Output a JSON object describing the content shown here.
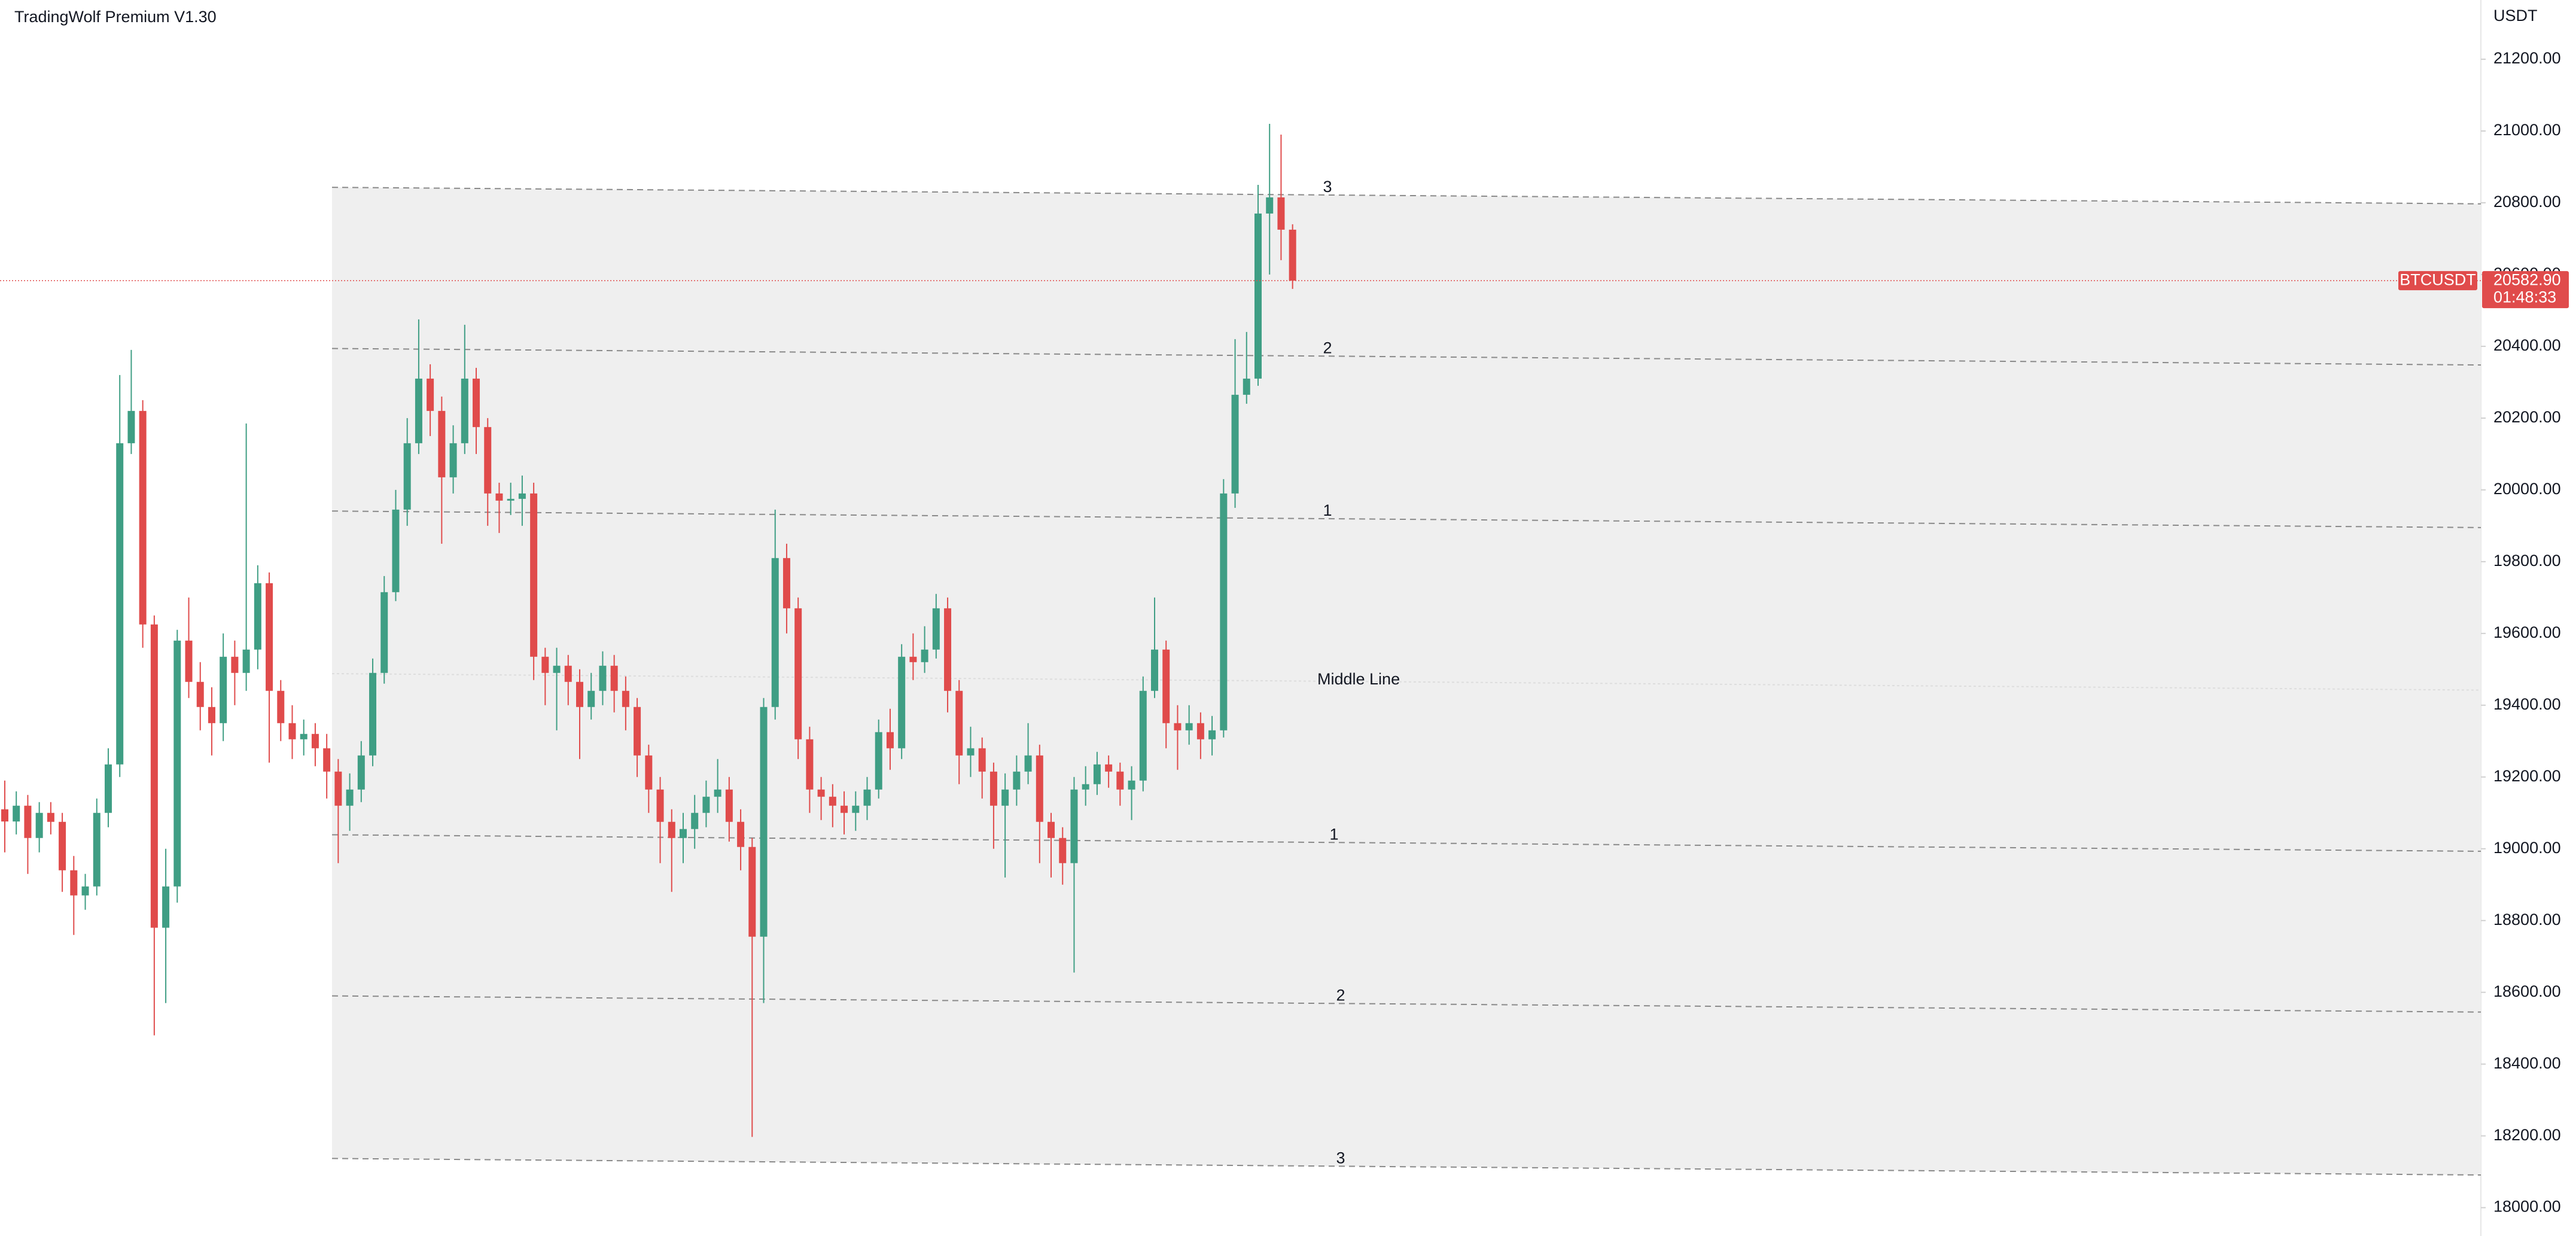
{
  "chart_data": {
    "type": "candlestick",
    "title": "TradingWolf Premium V1.30",
    "y_axis_label": "USDT",
    "ylim": [
      17921,
      21365
    ],
    "yticks": [
      {
        "value": 18000,
        "label": "18000.00"
      },
      {
        "value": 18200,
        "label": "18200.00"
      },
      {
        "value": 18400,
        "label": "18400.00"
      },
      {
        "value": 18600,
        "label": "18600.00"
      },
      {
        "value": 18800,
        "label": "18800.00"
      },
      {
        "value": 19000,
        "label": "19000.00"
      },
      {
        "value": 19200,
        "label": "19200.00"
      },
      {
        "value": 19400,
        "label": "19400.00"
      },
      {
        "value": 19600,
        "label": "19600.00"
      },
      {
        "value": 19800,
        "label": "19800.00"
      },
      {
        "value": 20000,
        "label": "20000.00"
      },
      {
        "value": 20200,
        "label": "20200.00"
      },
      {
        "value": 20400,
        "label": "20400.00"
      },
      {
        "value": 20600,
        "label": "20600.00"
      },
      {
        "value": 20800,
        "label": "20800.00"
      },
      {
        "value": 21000,
        "label": "21000.00"
      },
      {
        "value": 21200,
        "label": "21200.00"
      }
    ],
    "up_color": "#3f9e84",
    "down_color": "#e04b4b",
    "open": [
      19110,
      19076,
      19120,
      19030,
      19100,
      19075,
      18940,
      18870,
      18895,
      19100,
      19235,
      20130,
      20220,
      19625,
      18780,
      18895,
      19580,
      19465,
      19395,
      19350,
      19535,
      19490,
      19555,
      19740,
      19440,
      19350,
      19305,
      19320,
      19280,
      19215,
      19120,
      19165,
      19260,
      19490,
      19715,
      19945,
      20130,
      20310,
      20220,
      20035,
      20130,
      20310,
      20175,
      19990,
      19970,
      19975,
      19990,
      19535,
      19490,
      19510,
      19465,
      19395,
      19440,
      19510,
      19440,
      19395,
      19260,
      19165,
      19075,
      19030,
      19055,
      19100,
      19145,
      19165,
      19075,
      19005,
      18755,
      19395,
      19810,
      19670,
      19305,
      19165,
      19145,
      19120,
      19100,
      19120,
      19165,
      19325,
      19280,
      19535,
      19520,
      19555,
      19670,
      19440,
      19260,
      19280,
      19215,
      19120,
      19165,
      19215,
      19260,
      19075,
      19030,
      18960,
      19165,
      19180,
      19235,
      19215,
      19165,
      19190,
      19440,
      19555,
      19350,
      19330,
      19350,
      19305,
      19330,
      19990,
      20265,
      20310,
      20770,
      20815,
      20725
    ],
    "high": [
      19190,
      19160,
      19150,
      19130,
      19130,
      19100,
      18980,
      18930,
      19140,
      19280,
      20320,
      20390,
      20250,
      19650,
      19000,
      19610,
      19700,
      19520,
      19450,
      19600,
      19580,
      20185,
      19790,
      19770,
      19470,
      19400,
      19360,
      19350,
      19320,
      19250,
      19210,
      19300,
      19530,
      19760,
      20000,
      20200,
      20475,
      20350,
      20260,
      20180,
      20460,
      20340,
      20200,
      20020,
      20020,
      20040,
      20020,
      19560,
      19560,
      19540,
      19500,
      19490,
      19550,
      19540,
      19480,
      19420,
      19290,
      19200,
      19110,
      19100,
      19150,
      19190,
      19250,
      19200,
      19110,
      19030,
      19420,
      19945,
      19850,
      19700,
      19340,
      19200,
      19180,
      19160,
      19160,
      19200,
      19360,
      19390,
      19570,
      19600,
      19620,
      19710,
      19700,
      19470,
      19340,
      19310,
      19240,
      19210,
      19260,
      19350,
      19290,
      19100,
      19060,
      19200,
      19230,
      19270,
      19260,
      19240,
      19230,
      19480,
      19700,
      19580,
      19400,
      19400,
      19380,
      19370,
      20030,
      20420,
      20440,
      20850,
      21020,
      20990,
      20740
    ],
    "low": [
      18990,
      19040,
      18930,
      18990,
      19040,
      18880,
      18760,
      18830,
      18870,
      19060,
      19200,
      20100,
      19560,
      18480,
      18570,
      18850,
      19420,
      19330,
      19260,
      19300,
      19400,
      19440,
      19500,
      19240,
      19300,
      19250,
      19260,
      19230,
      19140,
      18960,
      19050,
      19130,
      19230,
      19460,
      19690,
      19900,
      20100,
      20150,
      19850,
      19990,
      20100,
      20100,
      19900,
      19880,
      19930,
      19900,
      19470,
      19400,
      19330,
      19400,
      19250,
      19360,
      19400,
      19380,
      19330,
      19200,
      19100,
      18960,
      18880,
      18960,
      19000,
      19060,
      19100,
      19020,
      18940,
      18197,
      18570,
      19360,
      19600,
      19250,
      19100,
      19080,
      19060,
      19040,
      19050,
      19080,
      19140,
      19220,
      19250,
      19470,
      19490,
      19530,
      19380,
      19180,
      19200,
      19140,
      19000,
      18920,
      19120,
      19180,
      18960,
      18920,
      18900,
      18655,
      19120,
      19150,
      19170,
      19120,
      19080,
      19160,
      19420,
      19280,
      19220,
      19290,
      19250,
      19260,
      19310,
      19950,
      20240,
      20290,
      20600,
      20640,
      20560
    ],
    "close": [
      19076,
      19120,
      19030,
      19100,
      19075,
      18940,
      18870,
      18895,
      19100,
      19235,
      20130,
      20220,
      19625,
      18780,
      18895,
      19580,
      19465,
      19395,
      19350,
      19535,
      19490,
      19555,
      19740,
      19440,
      19350,
      19305,
      19320,
      19280,
      19215,
      19120,
      19165,
      19260,
      19490,
      19715,
      19945,
      20130,
      20310,
      20220,
      20035,
      20130,
      20310,
      20175,
      19990,
      19970,
      19975,
      19990,
      19535,
      19490,
      19510,
      19465,
      19395,
      19440,
      19510,
      19440,
      19395,
      19260,
      19165,
      19075,
      19030,
      19055,
      19100,
      19145,
      19165,
      19075,
      19005,
      18755,
      19395,
      19810,
      19670,
      19305,
      19165,
      19145,
      19120,
      19100,
      19120,
      19165,
      19325,
      19280,
      19535,
      19520,
      19555,
      19670,
      19440,
      19260,
      19280,
      19215,
      19120,
      19165,
      19215,
      19260,
      19075,
      19030,
      18960,
      19165,
      19180,
      19235,
      19215,
      19165,
      19190,
      19440,
      19555,
      19350,
      19330,
      19350,
      19305,
      19330,
      19990,
      20265,
      20310,
      20770,
      20815,
      20725,
      20582.9
    ],
    "channel": {
      "fill": "#efefef",
      "lines": [
        {
          "label": "3",
          "start": 20843,
          "end": 20797
        },
        {
          "label": "2",
          "start": 20394,
          "end": 20348
        },
        {
          "label": "1",
          "start": 19941,
          "end": 19895
        },
        {
          "label": "Middle Line",
          "start": 19488,
          "end": 19442
        },
        {
          "label": "1",
          "start": 19039,
          "end": 18993
        },
        {
          "label": "2",
          "start": 18590,
          "end": 18545
        },
        {
          "label": "3",
          "start": 18137,
          "end": 18091
        }
      ]
    },
    "price_line": {
      "label": "BTCUSDT",
      "value": 20582.9,
      "value_label": "20582.90",
      "countdown": "01:48:33",
      "color": "#e04b4b"
    }
  }
}
